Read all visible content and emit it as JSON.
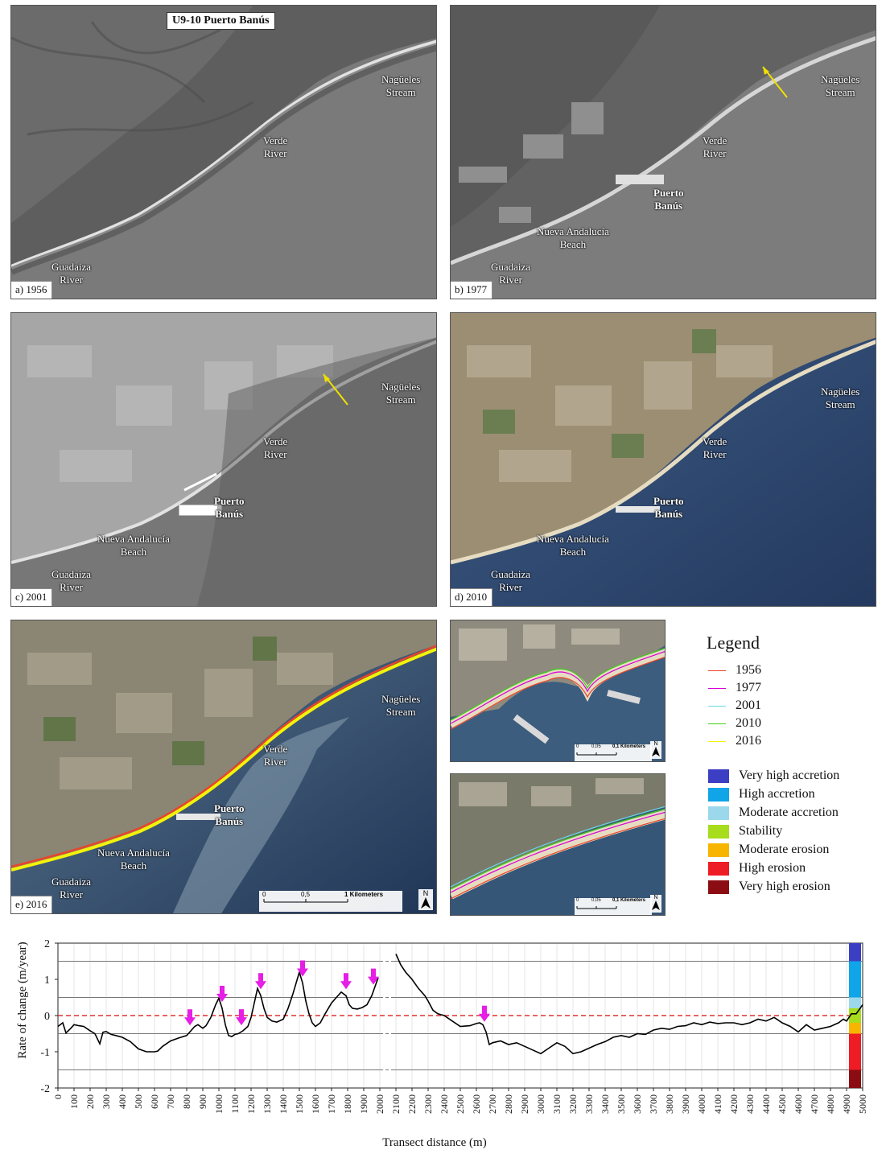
{
  "figure_title": "U9-10 Puerto Banús",
  "panels": [
    {
      "id": "a",
      "label": "a) 1956",
      "places": {
        "naguëles": "Nagüeles\nStream",
        "verde": "Verde\nRiver",
        "guadaiza": "Guadaiza\nRiver"
      }
    },
    {
      "id": "b",
      "label": "b) 1977",
      "places": {
        "naguëles": "Nagüeles\nStream",
        "verde": "Verde\nRiver",
        "puerto": "Puerto\nBanús",
        "nueva": "Nueva Andalucía\nBeach",
        "guadaiza": "Guadaiza\nRiver"
      }
    },
    {
      "id": "c",
      "label": "c) 2001",
      "places": {
        "naguëles": "Nagüeles\nStream",
        "verde": "Verde\nRiver",
        "puerto": "Puerto\nBanús",
        "nueva": "Nueva Andalucía\nBeach",
        "guadaiza": "Guadaiza\nRiver"
      }
    },
    {
      "id": "d",
      "label": "d) 2010",
      "places": {
        "naguëles": "Nagüeles\nStream",
        "verde": "Verde\nRiver",
        "puerto": "Puerto\nBanús",
        "nueva": "Nueva Andalucía\nBeach",
        "guadaiza": "Guadaiza\nRiver"
      }
    },
    {
      "id": "e",
      "label": "e) 2016",
      "places": {
        "naguëles": "Nagüeles\nStream",
        "verde": "Verde\nRiver",
        "puerto": "Puerto\nBanús",
        "nueva": "Nueva Andalucía\nBeach",
        "guadaiza": "Guadaiza\nRiver"
      }
    }
  ],
  "scales": {
    "main": {
      "ticks": [
        "0",
        "0,5",
        "1 Kilometers"
      ]
    },
    "inset": {
      "ticks": [
        "0",
        "0,05",
        "0,1 Kilometers"
      ]
    },
    "north": "N"
  },
  "legend": {
    "title": "Legend",
    "lines": [
      {
        "label": "1956",
        "color": "#e8442c"
      },
      {
        "label": "1977",
        "color": "#d400d4"
      },
      {
        "label": "2001",
        "color": "#66d9e8"
      },
      {
        "label": "2010",
        "color": "#3fcf1a"
      },
      {
        "label": "2016",
        "color": "#f2f20a"
      }
    ],
    "classes": [
      {
        "label": "Very high accretion",
        "color": "#3c3fc4"
      },
      {
        "label": "High accretion",
        "color": "#10a4e8"
      },
      {
        "label": "Moderate accretion",
        "color": "#9bd8ec"
      },
      {
        "label": "Stability",
        "color": "#a7dd1d"
      },
      {
        "label": "Moderate erosion",
        "color": "#f7b500"
      },
      {
        "label": "High erosion",
        "color": "#ee1c25"
      },
      {
        "label": "Very high erosion",
        "color": "#8b0c13"
      }
    ]
  },
  "chart_data": {
    "type": "line",
    "ylabel": "Rate of change (m/year)",
    "xlabel": "Transect distance (m)",
    "xlim": [
      0,
      5000
    ],
    "ylim": [
      -2,
      2
    ],
    "x_ticks": [
      "0",
      "100",
      "200",
      "300",
      "400",
      "500",
      "600",
      "700",
      "800",
      "900",
      "1000",
      "1100",
      "1200",
      "1300",
      "1400",
      "1500",
      "1600",
      "1700",
      "1800",
      "1900",
      "2000",
      "2100",
      "2200",
      "2300",
      "2400",
      "2500",
      "2600",
      "2700",
      "2800",
      "2900",
      "3000",
      "3100",
      "3200",
      "3300",
      "3400",
      "3500",
      "3600",
      "3700",
      "3800",
      "3900",
      "4000",
      "4100",
      "4200",
      "4300",
      "4400",
      "4500",
      "4600",
      "4700",
      "4800",
      "4900",
      "5000"
    ],
    "y_ticks": [
      "2",
      "1",
      "0",
      "-1",
      "-2"
    ],
    "thresholds": [
      1.5,
      0.5,
      -0.5,
      -1.5
    ],
    "zero_line": 0,
    "series": [
      {
        "x": [
          0,
          30,
          50,
          80,
          100,
          130,
          160,
          200,
          230,
          260,
          280,
          300,
          330,
          360,
          400,
          450,
          500,
          550,
          600,
          620,
          650,
          700,
          750,
          800,
          830,
          850,
          870,
          900,
          920,
          950,
          980,
          1000,
          1020,
          1040,
          1060,
          1080,
          1100,
          1120,
          1150,
          1180,
          1200,
          1220,
          1240,
          1260,
          1280,
          1300,
          1330,
          1360,
          1400,
          1430,
          1460,
          1480,
          1500,
          1520,
          1540,
          1560,
          1580,
          1600,
          1630,
          1660,
          1700,
          1730,
          1760,
          1790,
          1810,
          1830,
          1860,
          1890,
          1920,
          1950,
          1970,
          1990
        ],
        "y": [
          -0.3,
          -0.2,
          -0.48,
          -0.35,
          -0.25,
          -0.28,
          -0.3,
          -0.42,
          -0.5,
          -0.78,
          -0.46,
          -0.44,
          -0.52,
          -0.55,
          -0.6,
          -0.72,
          -0.92,
          -1.0,
          -1.0,
          -0.98,
          -0.85,
          -0.7,
          -0.62,
          -0.55,
          -0.4,
          -0.3,
          -0.25,
          -0.35,
          -0.28,
          -0.05,
          0.3,
          0.48,
          0.2,
          -0.25,
          -0.55,
          -0.58,
          -0.52,
          -0.5,
          -0.42,
          -0.3,
          -0.05,
          0.35,
          0.75,
          0.55,
          0.2,
          -0.05,
          -0.15,
          -0.18,
          -0.1,
          0.2,
          0.6,
          0.9,
          1.2,
          0.9,
          0.4,
          0.05,
          -0.2,
          -0.3,
          -0.2,
          0.05,
          0.35,
          0.5,
          0.65,
          0.55,
          0.3,
          0.2,
          0.18,
          0.22,
          0.3,
          0.55,
          0.8,
          1.05
        ]
      },
      {
        "x": [
          2100,
          2130,
          2160,
          2200,
          2240,
          2280,
          2300,
          2330,
          2360,
          2400,
          2450,
          2500,
          2560,
          2600,
          2620,
          2640,
          2660,
          2680,
          2700,
          2750,
          2800,
          2850,
          2900,
          2950,
          3000,
          3050,
          3100,
          3150,
          3200,
          3250,
          3300,
          3350,
          3400,
          3450,
          3500,
          3550,
          3600,
          3650,
          3700,
          3750,
          3800,
          3850,
          3900,
          3950,
          4000,
          4050,
          4100,
          4150,
          4200,
          4250,
          4300,
          4350,
          4400,
          4450,
          4500,
          4550,
          4600,
          4650,
          4700,
          4750,
          4800,
          4850,
          4880,
          4900,
          4930,
          4960,
          5000
        ],
        "y": [
          1.7,
          1.4,
          1.2,
          1.0,
          0.75,
          0.55,
          0.4,
          0.15,
          0.05,
          0.0,
          -0.15,
          -0.3,
          -0.28,
          -0.22,
          -0.2,
          -0.25,
          -0.45,
          -0.8,
          -0.75,
          -0.7,
          -0.8,
          -0.75,
          -0.85,
          -0.95,
          -1.05,
          -0.9,
          -0.75,
          -0.85,
          -1.05,
          -1.0,
          -0.9,
          -0.8,
          -0.72,
          -0.6,
          -0.55,
          -0.6,
          -0.5,
          -0.52,
          -0.4,
          -0.35,
          -0.38,
          -0.3,
          -0.28,
          -0.2,
          -0.25,
          -0.18,
          -0.22,
          -0.2,
          -0.2,
          -0.25,
          -0.2,
          -0.1,
          -0.15,
          -0.05,
          -0.2,
          -0.3,
          -0.45,
          -0.25,
          -0.4,
          -0.35,
          -0.3,
          -0.2,
          -0.1,
          -0.15,
          0.05,
          0.05,
          0.3
        ]
      }
    ],
    "markers_x": [
      820,
      1020,
      1140,
      1260,
      1520,
      1790,
      1960,
      2650
    ],
    "marker_color": "#e61ee6",
    "side_bar": [
      {
        "from": 1.5,
        "to": 2.0,
        "color": "#3c3fc4"
      },
      {
        "from": 0.5,
        "to": 1.5,
        "color": "#10a4e8"
      },
      {
        "from": 0.2,
        "to": 0.5,
        "color": "#9bd8ec"
      },
      {
        "from": -0.2,
        "to": 0.2,
        "color": "#a7dd1d"
      },
      {
        "from": -0.5,
        "to": -0.2,
        "color": "#f7b500"
      },
      {
        "from": -1.5,
        "to": -0.5,
        "color": "#ee1c25"
      },
      {
        "from": -2.0,
        "to": -1.5,
        "color": "#8b0c13"
      }
    ]
  }
}
